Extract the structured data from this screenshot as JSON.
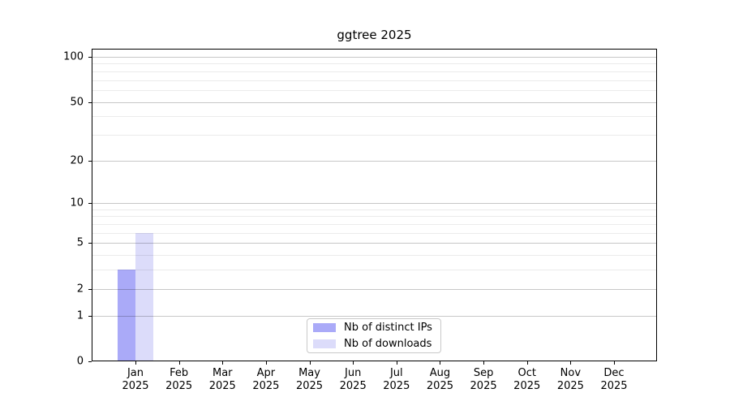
{
  "title": "ggtree 2025",
  "chart_data": {
    "type": "bar",
    "title": "ggtree 2025",
    "x_months": [
      "Jan",
      "Feb",
      "Mar",
      "Apr",
      "May",
      "Jun",
      "Jul",
      "Aug",
      "Sep",
      "Oct",
      "Nov",
      "Dec"
    ],
    "x_year": "2025",
    "series": [
      {
        "name": "Nb of distinct IPs",
        "color": "#aaaaf8",
        "values": [
          3,
          0,
          0,
          0,
          0,
          0,
          0,
          0,
          0,
          0,
          0,
          0
        ]
      },
      {
        "name": "Nb of downloads",
        "color": "#dcdcfa",
        "values": [
          6,
          0,
          0,
          0,
          0,
          0,
          0,
          0,
          0,
          0,
          0,
          0
        ]
      }
    ],
    "y_scale": "log1p",
    "ylim": [
      0,
      100
    ],
    "y_major_ticks": [
      0,
      1,
      2,
      5,
      10,
      20,
      50,
      100
    ],
    "y_minor_gridlines": [
      1,
      2,
      3,
      4,
      5,
      6,
      7,
      8,
      9,
      10,
      20,
      30,
      40,
      50,
      60,
      70,
      80,
      90,
      100
    ],
    "grid": true,
    "legend_position": "bottom-center"
  },
  "colors": {
    "background": "#ffffff",
    "bar_distinct_ips": "#aaaaf8",
    "bar_downloads": "#dcdcfa",
    "grid_major": "rgba(0,0,0,0.22)",
    "grid_minor": "rgba(0,0,0,0.08)",
    "axis": "#000000",
    "legend_border": "#c9c9c9"
  }
}
